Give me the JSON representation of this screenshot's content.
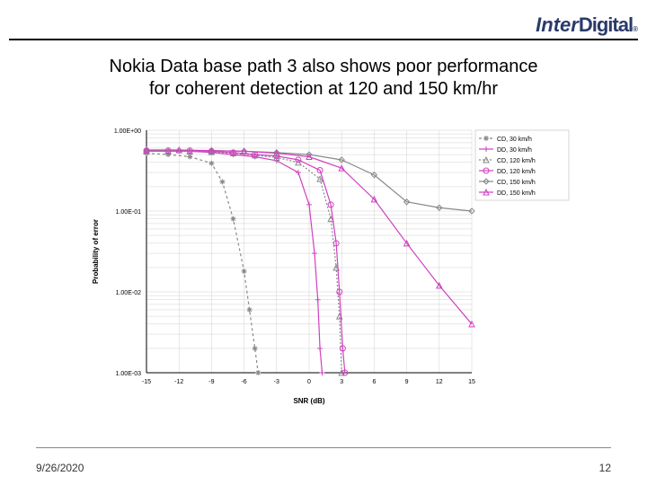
{
  "header": {
    "logo_inter": "Inter",
    "logo_digital": "Digital"
  },
  "title": {
    "line1": "Nokia Data base path 3 also shows poor performance",
    "line2": "for coherent detection at 120 and 150 km/hr"
  },
  "footer": {
    "date": "9/26/2020",
    "page_num": "12"
  },
  "chart": {
    "type": "line",
    "xlabel": "SNR (dB)",
    "ylabel": "Probability of error",
    "x_ticks": [
      -15,
      -12,
      -9,
      -6,
      -3,
      0,
      3,
      6,
      9,
      12,
      15
    ],
    "y_ticks": [
      0.001,
      0.01,
      0.1,
      1.0
    ],
    "y_tick_labels": [
      "1.00E-03",
      "1.00E-02",
      "1.00E-01",
      "1.00E+00"
    ],
    "xlim": [
      -15,
      15
    ],
    "ylim": [
      0.001,
      1.0
    ],
    "label_fontsize": 8,
    "tick_fontsize": 7,
    "legend_fontsize": 7,
    "background_color": "#ffffff",
    "grid_color": "#d0d0d0",
    "axis_color": "#000000",
    "legend_items": [
      {
        "label": "CD, 30 km/h",
        "color": "#888888",
        "marker": "asterisk",
        "dash": "3,3"
      },
      {
        "label": "DD, 30 km/h",
        "color": "#d040c0",
        "marker": "plus",
        "dash": ""
      },
      {
        "label": "CD, 120 km/h",
        "color": "#888888",
        "marker": "triangle",
        "dash": "2,2"
      },
      {
        "label": "DD, 120 km/h",
        "color": "#d040c0",
        "marker": "circle",
        "dash": ""
      },
      {
        "label": "CD, 150 km/h",
        "color": "#888888",
        "marker": "diamond",
        "dash": ""
      },
      {
        "label": "DD, 150 km/h",
        "color": "#d040c0",
        "marker": "triangle",
        "dash": ""
      }
    ],
    "series": [
      {
        "name": "CD30",
        "color": "#888888",
        "dash": "3,3",
        "marker": "asterisk",
        "points": [
          [
            -15,
            0.52
          ],
          [
            -13,
            0.5
          ],
          [
            -11,
            0.47
          ],
          [
            -9,
            0.39
          ],
          [
            -8,
            0.23
          ],
          [
            -7,
            0.08
          ],
          [
            -6,
            0.018
          ],
          [
            -5.5,
            0.006
          ],
          [
            -5,
            0.002
          ],
          [
            -4.7,
            0.001
          ]
        ]
      },
      {
        "name": "DD30",
        "color": "#d040c0",
        "dash": "",
        "marker": "plus",
        "points": [
          [
            -15,
            0.55
          ],
          [
            -13,
            0.55
          ],
          [
            -11,
            0.55
          ],
          [
            -9,
            0.53
          ],
          [
            -7,
            0.5
          ],
          [
            -5,
            0.47
          ],
          [
            -3,
            0.42
          ],
          [
            -1,
            0.3
          ],
          [
            0,
            0.12
          ],
          [
            0.5,
            0.03
          ],
          [
            0.8,
            0.008
          ],
          [
            1.0,
            0.002
          ],
          [
            1.2,
            0.001
          ]
        ]
      },
      {
        "name": "CD120",
        "color": "#888888",
        "dash": "2,2",
        "marker": "triangle",
        "points": [
          [
            -15,
            0.55
          ],
          [
            -13,
            0.55
          ],
          [
            -11,
            0.55
          ],
          [
            -9,
            0.54
          ],
          [
            -7,
            0.52
          ],
          [
            -5,
            0.49
          ],
          [
            -3,
            0.46
          ],
          [
            -1,
            0.4
          ],
          [
            1,
            0.25
          ],
          [
            2,
            0.08
          ],
          [
            2.5,
            0.02
          ],
          [
            2.8,
            0.005
          ],
          [
            3.0,
            0.001
          ]
        ]
      },
      {
        "name": "DD120",
        "color": "#d040c0",
        "dash": "",
        "marker": "circle",
        "points": [
          [
            -15,
            0.56
          ],
          [
            -13,
            0.56
          ],
          [
            -11,
            0.56
          ],
          [
            -9,
            0.55
          ],
          [
            -7,
            0.53
          ],
          [
            -5,
            0.5
          ],
          [
            -3,
            0.48
          ],
          [
            -1,
            0.43
          ],
          [
            1,
            0.32
          ],
          [
            2,
            0.12
          ],
          [
            2.5,
            0.04
          ],
          [
            2.8,
            0.01
          ],
          [
            3.1,
            0.002
          ],
          [
            3.3,
            0.001
          ]
        ]
      },
      {
        "name": "CD150",
        "color": "#888888",
        "dash": "",
        "marker": "diamond",
        "points": [
          [
            -15,
            0.56
          ],
          [
            -12,
            0.56
          ],
          [
            -9,
            0.56
          ],
          [
            -6,
            0.55
          ],
          [
            -3,
            0.53
          ],
          [
            0,
            0.5
          ],
          [
            3,
            0.43
          ],
          [
            6,
            0.28
          ],
          [
            9,
            0.13
          ],
          [
            12,
            0.11
          ],
          [
            15,
            0.1
          ]
        ]
      },
      {
        "name": "DD150",
        "color": "#d040c0",
        "dash": "",
        "marker": "triangle",
        "points": [
          [
            -15,
            0.57
          ],
          [
            -12,
            0.57
          ],
          [
            -9,
            0.56
          ],
          [
            -6,
            0.55
          ],
          [
            -3,
            0.52
          ],
          [
            0,
            0.47
          ],
          [
            3,
            0.34
          ],
          [
            6,
            0.14
          ],
          [
            9,
            0.04
          ],
          [
            12,
            0.012
          ],
          [
            15,
            0.004
          ]
        ]
      }
    ]
  }
}
